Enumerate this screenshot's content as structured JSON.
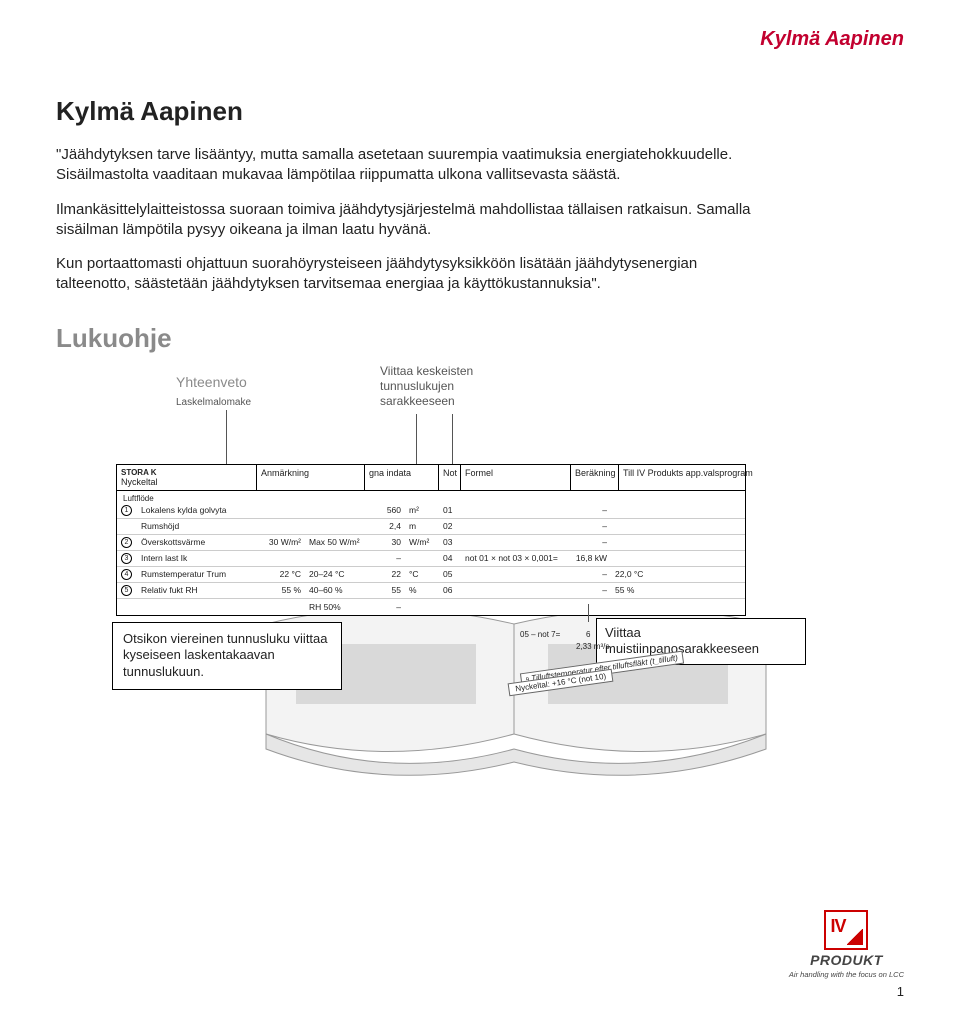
{
  "colors": {
    "accent": "#c2002f",
    "muted_heading": "#8a8a8a",
    "text": "#222222",
    "callout_border": "#000000",
    "row_divider": "#cccccc",
    "logo_red": "#c00000",
    "background": "#ffffff"
  },
  "typography": {
    "body_fontsize_pt": 11,
    "h1_fontsize_pt": 20,
    "h2_fontsize_pt": 20,
    "callout_fontsize_pt": 7,
    "desc_fontsize_pt": 10
  },
  "header": {
    "right_title": "Kylmä Aapinen",
    "left_title": "Kylmä Aapinen"
  },
  "intro": {
    "p1": "\"Jäähdytyksen tarve lisääntyy, mutta samalla asetetaan suurempia vaatimuksia energiatehokkuudelle. Sisäilmastolta vaaditaan mukavaa lämpötilaa riippumatta ulkona vallitsevasta säästä.",
    "p2": "Ilmankäsittelylaitteistossa suoraan toimiva jäähdytysjärjestelmä mahdollistaa tällaisen ratkaisun. Samalla sisäilman lämpötila pysyy oikeana ja ilman laatu hyvänä.",
    "p3": "Kun portaattomasti ohjattuun suorahöyrysteiseen jäähdytysyksikköön lisätään jäähdytysenergian talteenotto, säästetään jäähdytyksen tarvitsemaa energiaa ja käyttökustannuksia\"."
  },
  "section2_title": "Lukuohje",
  "diagram": {
    "label_summary_title": "Yhteenveto",
    "label_summary_sub": "Laskelmalomake",
    "label_columns": "Viittaa keskeisten tunnuslukujen sarakkeeseen",
    "desc_left": "Otsikon viereinen tunnusluku viittaa kyseiseen laskentakaavan tunnuslukuun.",
    "desc_right": "Viittaa muistiinpanosarakkeeseen",
    "note_strip": "Nyckeltal: +16 °C (not 10)",
    "note_strip_prefix": "Tilluftstemperatur efter tilluftsfläkt (t_tilluft)",
    "callout": {
      "top_left": "STORA K",
      "header": [
        "Nyckeltal",
        "Anmärkning",
        "gna indata",
        "Not",
        "Formel",
        "Beräkning",
        "Till IV Produkts app.valsprogram"
      ],
      "group_label": "Luftflöde",
      "rows": [
        {
          "n": "1",
          "label": "Lokalens kylda golvyta",
          "c": "",
          "d": "",
          "e": "560",
          "f": "m²",
          "g": "01",
          "h": "",
          "i": "–",
          "j": ""
        },
        {
          "n": "",
          "label": "Rumshöjd",
          "c": "",
          "d": "",
          "e": "2,4",
          "f": "m",
          "g": "02",
          "h": "",
          "i": "–",
          "j": ""
        },
        {
          "n": "2",
          "label": "Överskottsvärme",
          "c": "30 W/m²",
          "d": "Max 50 W/m²",
          "e": "30",
          "f": "W/m²",
          "g": "03",
          "h": "",
          "i": "–",
          "j": ""
        },
        {
          "n": "3",
          "label": "Intern last Ik",
          "c": "",
          "d": "",
          "e": "–",
          "f": "",
          "g": "04",
          "h": "not 01 × not 03 × 0,001=",
          "i": "16,8 kW",
          "j": ""
        },
        {
          "n": "4",
          "label": "Rumstemperatur Trum",
          "c": "22 °C",
          "d": "20–24 °C",
          "e": "22",
          "f": "°C",
          "g": "05",
          "h": "",
          "i": "–",
          "j": "22,0   °C"
        },
        {
          "n": "5",
          "label": "Relativ fukt RH",
          "c": "55 %",
          "d": "40–60 %",
          "e": "55",
          "f": "%",
          "g": "06",
          "h": "",
          "i": "–",
          "j": "55   %"
        },
        {
          "n": "",
          "label": "",
          "c": "",
          "d": "RH 50%",
          "e": "–",
          "f": "",
          "g": "",
          "h": "",
          "i": "",
          "j": ""
        }
      ],
      "mid_note_1": "05 – not 7=",
      "mid_note_2": "6",
      "mid_note_3": "2,33 m³/s"
    }
  },
  "footer": {
    "logo_text": "IV",
    "logo_word": "PRODUKT",
    "logo_tag": "Air handling with the focus on LCC",
    "page": "1"
  }
}
